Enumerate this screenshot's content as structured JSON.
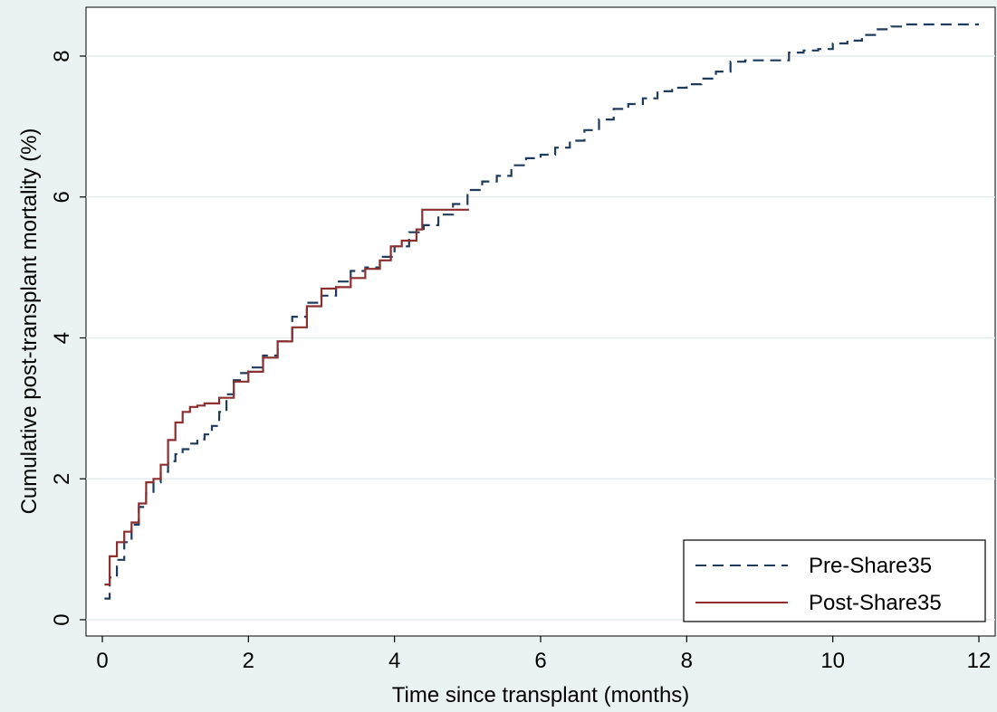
{
  "chart_data": {
    "type": "line",
    "title": "",
    "xlabel": "Time since transplant (months)",
    "ylabel": "Cumulative post-transplant mortality (%)",
    "xlim": [
      0,
      12
    ],
    "ylim": [
      0,
      8.5
    ],
    "xticks": [
      0,
      2,
      4,
      6,
      8,
      10,
      12
    ],
    "yticks": [
      0,
      2,
      4,
      6,
      8
    ],
    "grid": true,
    "legend_position": "bottom-right",
    "series": [
      {
        "name": "Pre-Share35",
        "color": "#1f3b5c",
        "style": "dashed",
        "x": [
          0.03,
          0.1,
          0.2,
          0.3,
          0.4,
          0.5,
          0.6,
          0.7,
          0.8,
          0.9,
          1.0,
          1.1,
          1.2,
          1.3,
          1.4,
          1.5,
          1.6,
          1.7,
          1.8,
          1.9,
          2.0,
          2.2,
          2.4,
          2.6,
          2.8,
          3.0,
          3.2,
          3.4,
          3.6,
          3.8,
          4.0,
          4.2,
          4.4,
          4.6,
          4.8,
          5.0,
          5.2,
          5.4,
          5.6,
          5.8,
          6.0,
          6.2,
          6.4,
          6.6,
          6.8,
          7.0,
          7.2,
          7.4,
          7.6,
          7.8,
          8.0,
          8.2,
          8.4,
          8.6,
          8.8,
          9.0,
          9.2,
          9.4,
          9.6,
          9.8,
          10.0,
          10.2,
          10.4,
          10.6,
          10.8,
          11.0,
          11.5,
          12.0
        ],
        "y": [
          0.3,
          0.6,
          0.85,
          1.1,
          1.35,
          1.6,
          1.8,
          1.95,
          2.1,
          2.25,
          2.35,
          2.42,
          2.5,
          2.56,
          2.63,
          2.75,
          2.95,
          3.2,
          3.4,
          3.5,
          3.58,
          3.75,
          3.95,
          4.3,
          4.5,
          4.6,
          4.8,
          4.95,
          5.0,
          5.15,
          5.3,
          5.5,
          5.6,
          5.75,
          5.9,
          6.1,
          6.22,
          6.3,
          6.45,
          6.55,
          6.6,
          6.7,
          6.8,
          6.95,
          7.1,
          7.25,
          7.32,
          7.4,
          7.5,
          7.55,
          7.6,
          7.68,
          7.78,
          7.92,
          7.94,
          7.94,
          7.94,
          8.05,
          8.08,
          8.1,
          8.18,
          8.22,
          8.3,
          8.38,
          8.42,
          8.45,
          8.45,
          8.45
        ]
      },
      {
        "name": "Post-Share35",
        "color": "#8b2f2f",
        "style": "solid",
        "x": [
          0.03,
          0.1,
          0.2,
          0.3,
          0.4,
          0.5,
          0.6,
          0.7,
          0.8,
          0.9,
          1.0,
          1.1,
          1.2,
          1.3,
          1.4,
          1.6,
          1.8,
          2.0,
          2.2,
          2.4,
          2.6,
          2.8,
          3.0,
          3.2,
          3.4,
          3.6,
          3.8,
          3.95,
          4.1,
          4.3,
          4.38,
          4.5,
          4.7,
          4.9,
          5.02
        ],
        "y": [
          0.5,
          0.9,
          1.1,
          1.25,
          1.38,
          1.65,
          1.95,
          2.0,
          2.2,
          2.55,
          2.8,
          2.95,
          3.02,
          3.04,
          3.07,
          3.15,
          3.38,
          3.52,
          3.72,
          3.95,
          4.15,
          4.45,
          4.7,
          4.72,
          4.85,
          4.98,
          5.1,
          5.3,
          5.38,
          5.54,
          5.82,
          5.82,
          5.82,
          5.82,
          5.82
        ]
      }
    ]
  }
}
